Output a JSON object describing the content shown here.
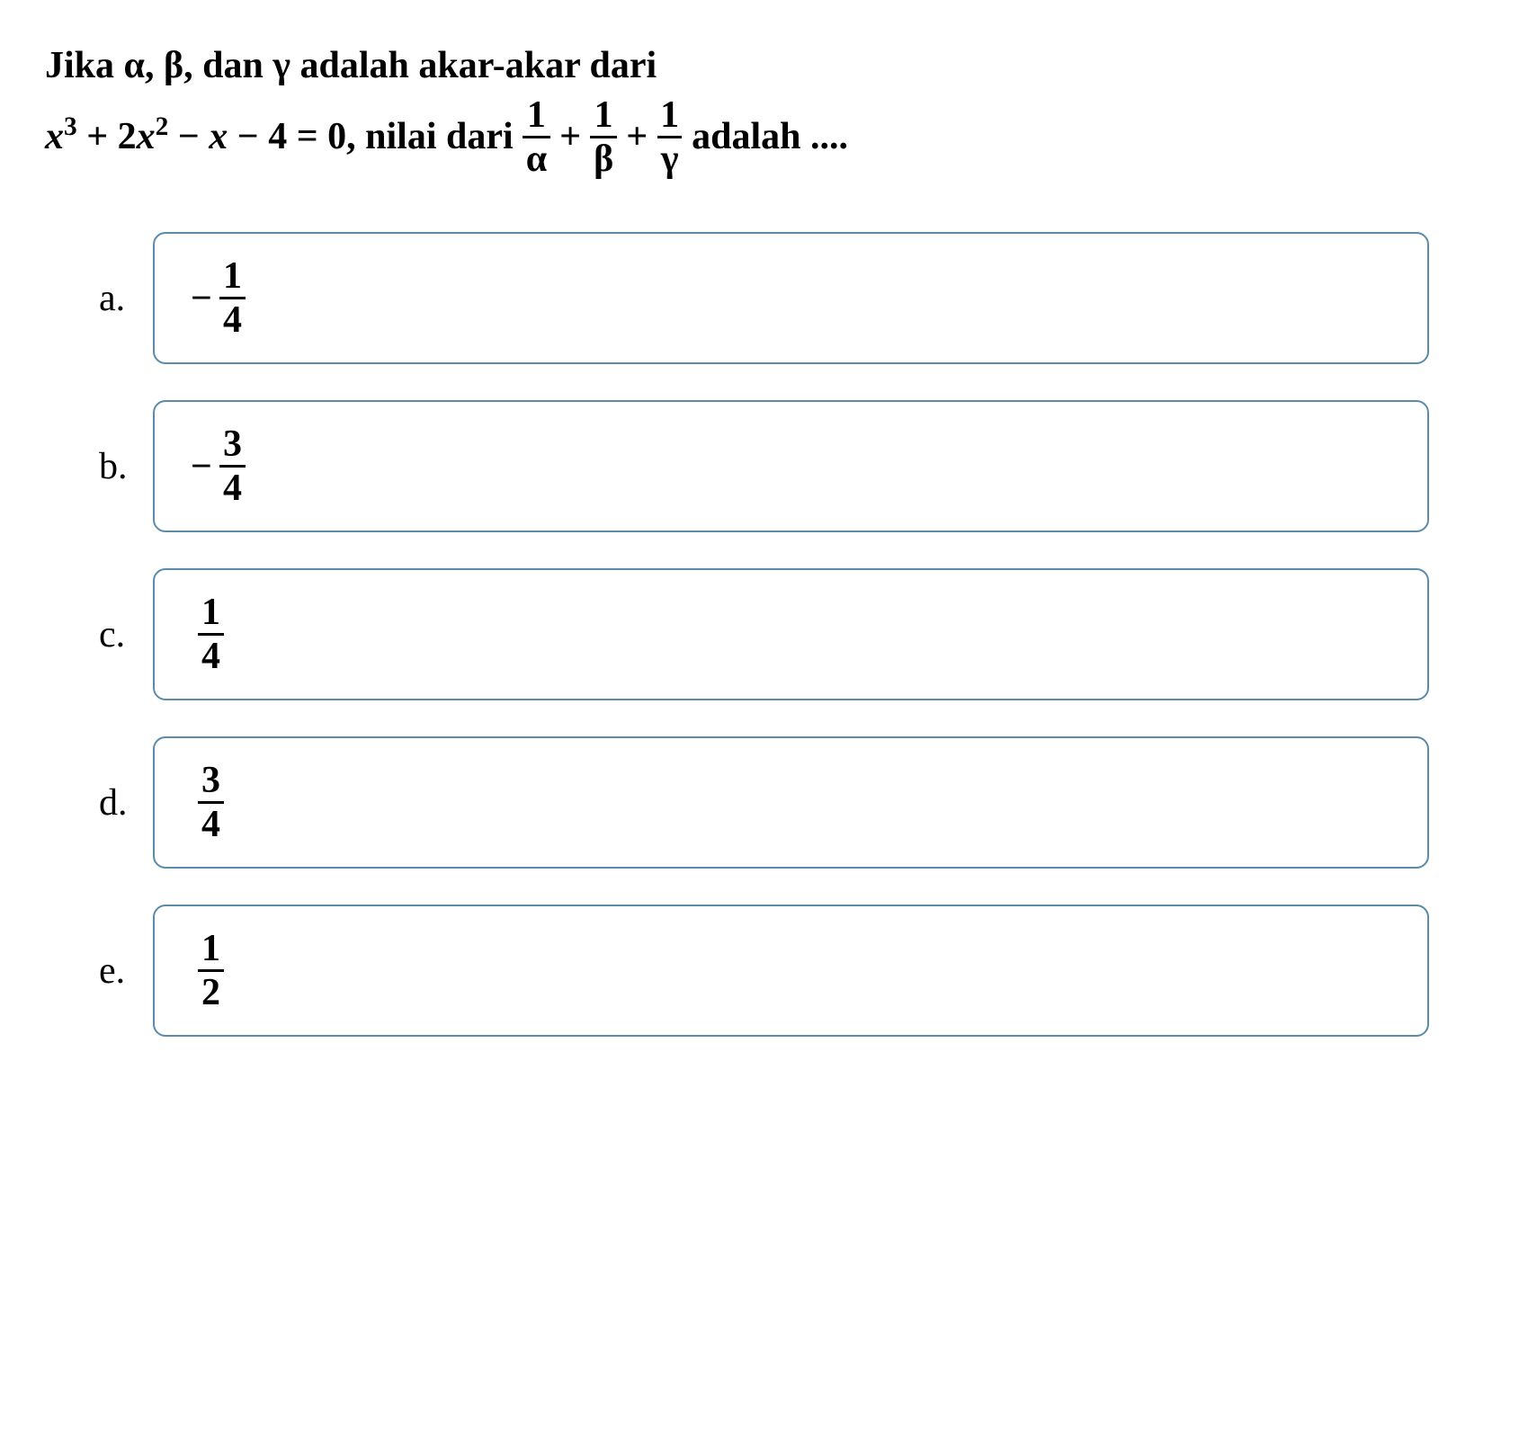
{
  "question": {
    "line1_parts": {
      "prefix": "Jika α, β, dan γ adalah akar-akar dari",
      "poly_prefix": "x",
      "exp1": "3",
      "plus1": " + 2",
      "poly_x2": "x",
      "exp2": "2",
      "minus_x": " − ",
      "poly_x": "x",
      "minus4": " − 4 = 0, nilai dari ",
      "frac1_num": "1",
      "frac1_den": "α",
      "plus_a": " + ",
      "frac2_num": "1",
      "frac2_den": "β",
      "plus_b": " + ",
      "frac3_num": "1",
      "frac3_den": "γ",
      "suffix": " adalah ...."
    }
  },
  "options": [
    {
      "label": "a.",
      "sign": "−",
      "num": "1",
      "den": "4"
    },
    {
      "label": "b.",
      "sign": "−",
      "num": "3",
      "den": "4"
    },
    {
      "label": "c.",
      "sign": "",
      "num": "1",
      "den": "4"
    },
    {
      "label": "d.",
      "sign": "",
      "num": "3",
      "den": "4"
    },
    {
      "label": "e.",
      "sign": "",
      "num": "1",
      "den": "2"
    }
  ],
  "style": {
    "border_color": "#5b8ba8",
    "box_bg": "#ffffff",
    "text_color": "#000000",
    "label_font_size": 42,
    "option_font_size": 42,
    "question_font_size": 42,
    "border_radius": 14
  }
}
